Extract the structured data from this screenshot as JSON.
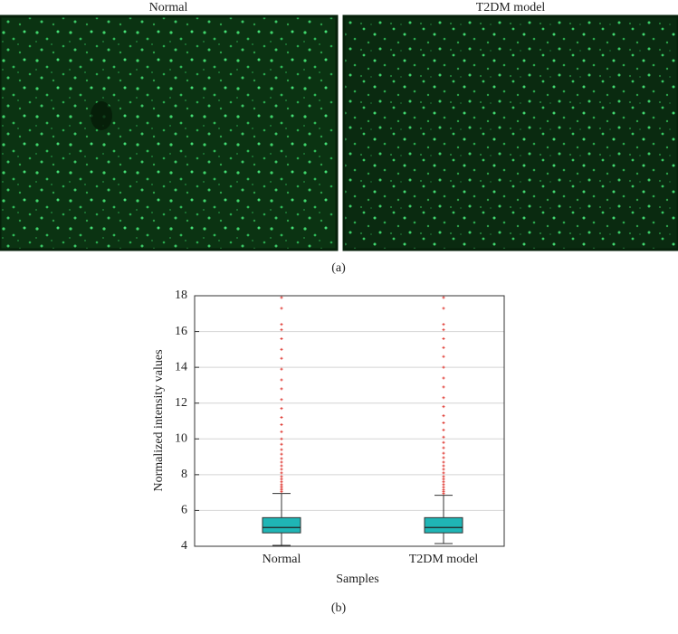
{
  "panel_a": {
    "images": [
      {
        "title": "Normal"
      },
      {
        "title": "T2DM model"
      }
    ],
    "label": "(a)"
  },
  "chart_data": {
    "type": "box",
    "xlabel": "Samples",
    "ylabel": "Normalized intensity values",
    "categories": [
      "Normal",
      "T2DM model"
    ],
    "boxes": [
      {
        "whislo": 4.05,
        "q1": 4.75,
        "median": 5.05,
        "q3": 5.6,
        "whishi": 6.95,
        "fliers": [
          7.05,
          7.15,
          7.25,
          7.35,
          7.45,
          7.6,
          7.75,
          7.9,
          8.1,
          8.3,
          8.5,
          8.7,
          8.9,
          9.15,
          9.4,
          9.7,
          10.0,
          10.4,
          10.8,
          11.2,
          11.7,
          12.2,
          12.8,
          13.3,
          13.9,
          14.5,
          15.0,
          15.6,
          16.1,
          16.4,
          17.3,
          17.9
        ]
      },
      {
        "whislo": 4.15,
        "q1": 4.75,
        "median": 5.05,
        "q3": 5.6,
        "whishi": 6.85,
        "fliers": [
          6.95,
          7.05,
          7.15,
          7.3,
          7.45,
          7.6,
          7.75,
          7.9,
          8.1,
          8.3,
          8.5,
          8.7,
          8.95,
          9.2,
          9.5,
          9.8,
          10.1,
          10.5,
          10.9,
          11.3,
          11.8,
          12.3,
          12.9,
          13.4,
          14.0,
          14.6,
          15.1,
          15.6,
          16.1,
          16.4,
          17.3,
          17.9
        ]
      }
    ],
    "box_color": "#1fb5b5",
    "flier_color": "#e0403a",
    "ylim": [
      4,
      18
    ],
    "yticks": [
      4,
      6,
      8,
      10,
      12,
      14,
      16,
      18
    ],
    "grid": true
  },
  "panel_b_label": "(b)"
}
